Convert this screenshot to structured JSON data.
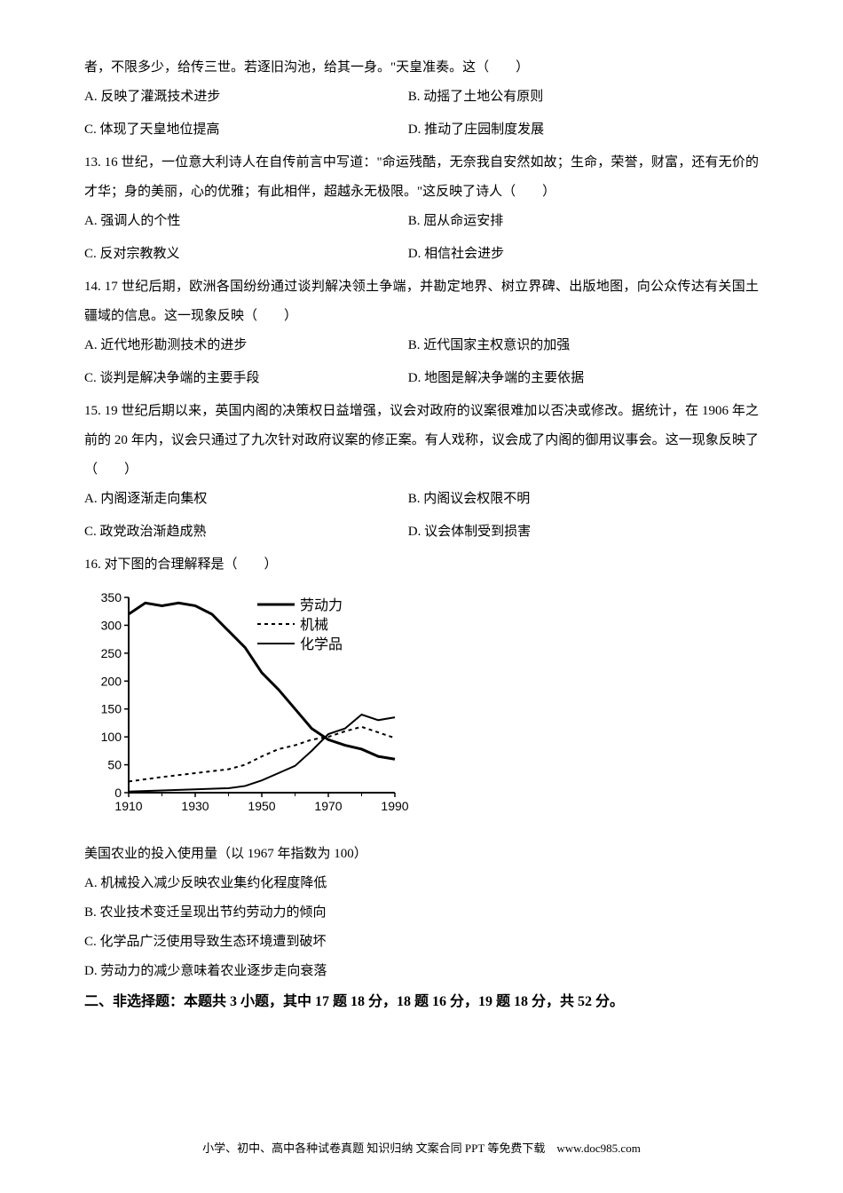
{
  "q12": {
    "tail": "者，不限多少，给传三世。若逐旧沟池，给其一身。\"天皇准奏。这（　　）",
    "A": "A. 反映了灌溉技术进步",
    "B": "B. 动摇了土地公有原则",
    "C": "C. 体现了天皇地位提高",
    "D": "D. 推动了庄园制度发展"
  },
  "q13": {
    "text": "13. 16 世纪，一位意大利诗人在自传前言中写道：\"命运残酷，无奈我自安然如故；生命，荣誉，财富，还有无价的才华；身的美丽，心的优雅；有此相伴，超越永无极限。\"这反映了诗人（　　）",
    "A": "A. 强调人的个性",
    "B": "B. 屈从命运安排",
    "C": "C. 反对宗教教义",
    "D": "D. 相信社会进步"
  },
  "q14": {
    "text": "14. 17 世纪后期，欧洲各国纷纷通过谈判解决领土争端，并勘定地界、树立界碑、出版地图，向公众传达有关国土疆域的信息。这一现象反映（　　）",
    "A": "A. 近代地形勘测技术的进步",
    "B": "B. 近代国家主权意识的加强",
    "C": "C. 谈判是解决争端的主要手段",
    "D": "D. 地图是解决争端的主要依据"
  },
  "q15": {
    "text": "15. 19 世纪后期以来，英国内阁的决策权日益增强，议会对政府的议案很难加以否决或修改。据统计，在 1906 年之前的 20 年内，议会只通过了九次针对政府议案的修正案。有人戏称，议会成了内阁的御用议事会。这一现象反映了（　　）",
    "A": "A. 内阁逐渐走向集权",
    "B": "B. 内阁议会权限不明",
    "C": "C. 政党政治渐趋成熟",
    "D": "D. 议会体制受到损害"
  },
  "q16": {
    "text": "16. 对下图的合理解释是（　　）",
    "caption": "美国农业的投入使用量（以 1967 年指数为 100）",
    "A": "A. 机械投入减少反映农业集约化程度降低",
    "B": "B. 农业技术变迁呈现出节约劳动力的倾向",
    "C": "C. 化学品广泛使用导致生态环境遭到破坏",
    "D": "D. 劳动力的减少意味着农业逐步走向衰落",
    "chart": {
      "type": "line",
      "xlim": [
        1910,
        1990
      ],
      "ylim": [
        0,
        350
      ],
      "xticks": [
        1910,
        1930,
        1950,
        1970,
        1990
      ],
      "yticks": [
        0,
        50,
        100,
        150,
        200,
        250,
        300,
        350
      ],
      "background_color": "#ffffff",
      "axis_color": "#000000",
      "text_color": "#000000",
      "legend_fontsize": 16,
      "axis_fontsize": 14,
      "line_width_thick": 3,
      "line_width_thin": 2,
      "series": {
        "labor": {
          "label": "劳动力",
          "style": "solid-thick",
          "color": "#000000",
          "data": [
            [
              1910,
              320
            ],
            [
              1915,
              340
            ],
            [
              1920,
              335
            ],
            [
              1925,
              340
            ],
            [
              1930,
              335
            ],
            [
              1935,
              320
            ],
            [
              1940,
              290
            ],
            [
              1945,
              260
            ],
            [
              1950,
              215
            ],
            [
              1955,
              185
            ],
            [
              1960,
              150
            ],
            [
              1965,
              115
            ],
            [
              1970,
              95
            ],
            [
              1975,
              85
            ],
            [
              1980,
              78
            ],
            [
              1985,
              65
            ],
            [
              1990,
              60
            ]
          ]
        },
        "machinery": {
          "label": "机械",
          "style": "dashed",
          "color": "#000000",
          "data": [
            [
              1910,
              20
            ],
            [
              1920,
              28
            ],
            [
              1930,
              35
            ],
            [
              1940,
              42
            ],
            [
              1945,
              50
            ],
            [
              1950,
              65
            ],
            [
              1955,
              78
            ],
            [
              1960,
              85
            ],
            [
              1965,
              95
            ],
            [
              1970,
              100
            ],
            [
              1975,
              110
            ],
            [
              1980,
              118
            ],
            [
              1985,
              108
            ],
            [
              1990,
              98
            ]
          ]
        },
        "chemicals": {
          "label": "化学品",
          "style": "solid-thin",
          "color": "#000000",
          "data": [
            [
              1910,
              2
            ],
            [
              1920,
              4
            ],
            [
              1930,
              6
            ],
            [
              1940,
              8
            ],
            [
              1945,
              12
            ],
            [
              1950,
              22
            ],
            [
              1955,
              35
            ],
            [
              1960,
              48
            ],
            [
              1965,
              75
            ],
            [
              1970,
              105
            ],
            [
              1975,
              115
            ],
            [
              1980,
              140
            ],
            [
              1985,
              130
            ],
            [
              1990,
              135
            ]
          ]
        }
      }
    }
  },
  "section2": {
    "title": "二、非选择题：本题共 3 小题，其中 17 题 18 分，18 题 16 分，19 题 18 分，共 52 分。"
  },
  "footer": "小学、初中、高中各种试卷真题 知识归纳 文案合同 PPT 等免费下载　www.doc985.com"
}
